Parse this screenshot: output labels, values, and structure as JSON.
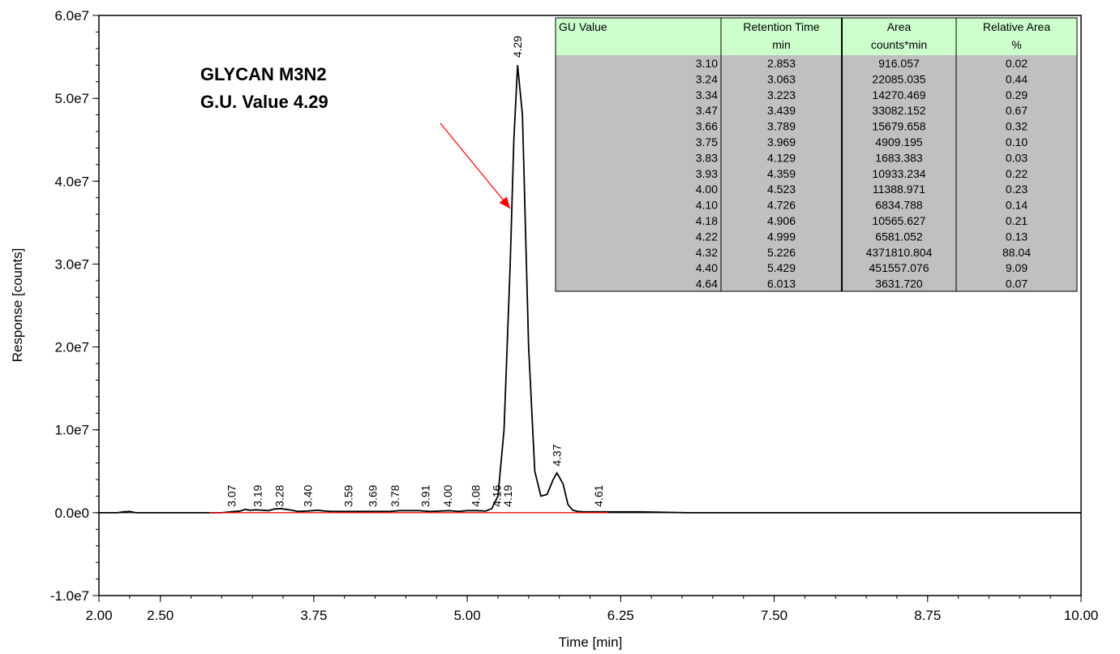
{
  "chart_data": {
    "type": "line",
    "xlabel": "Time [min]",
    "ylabel": "Response [counts]",
    "xlim": [
      2.0,
      10.0
    ],
    "ylim": [
      -10000000.0,
      60000000.0
    ],
    "x_ticks": [
      2.0,
      2.5,
      3.75,
      5.0,
      6.25,
      7.5,
      8.75,
      10.0
    ],
    "x_tick_labels": [
      "2.00",
      "2.50",
      "3.75",
      "5.00",
      "6.25",
      "7.50",
      "8.75",
      "10.00"
    ],
    "y_ticks": [
      -10000000.0,
      0,
      10000000.0,
      20000000.0,
      30000000.0,
      40000000.0,
      50000000.0,
      60000000.0
    ],
    "y_tick_labels": [
      "-1.0e7",
      "0.0e0",
      "1.0e7",
      "2.0e7",
      "3.0e7",
      "4.0e7",
      "5.0e7",
      "6.0e7"
    ],
    "grid": false,
    "series": [
      {
        "color": "#000000",
        "x": [
          2.0,
          2.15,
          2.2,
          2.25,
          2.3,
          2.6,
          2.9,
          3.0,
          3.07,
          3.15,
          3.19,
          3.23,
          3.28,
          3.33,
          3.38,
          3.43,
          3.48,
          3.55,
          3.62,
          3.7,
          3.78,
          3.84,
          3.9,
          3.96,
          4.02,
          4.1,
          4.2,
          4.3,
          4.37,
          4.45,
          4.52,
          4.6,
          4.7,
          4.78,
          4.85,
          4.93,
          5.0,
          5.08,
          5.15,
          5.2,
          5.25,
          5.3,
          5.35,
          5.38,
          5.41,
          5.45,
          5.5,
          5.55,
          5.6,
          5.65,
          5.7,
          5.73,
          5.78,
          5.82,
          5.86,
          5.9,
          5.95,
          6.0,
          6.05,
          6.1,
          6.2,
          6.4,
          6.8,
          7.2,
          10.0
        ],
        "y": [
          0,
          0,
          100000,
          150000,
          0,
          0,
          0,
          0,
          100000,
          200000,
          400000,
          300000,
          350000,
          300000,
          250000,
          450000,
          500000,
          350000,
          150000,
          200000,
          300000,
          200000,
          150000,
          150000,
          150000,
          150000,
          150000,
          150000,
          150000,
          250000,
          250000,
          250000,
          150000,
          200000,
          250000,
          150000,
          250000,
          250000,
          200000,
          500000,
          2000000,
          10000000,
          30000000,
          45000000,
          54000000,
          48000000,
          20000000,
          5000000,
          2000000,
          2200000,
          4000000,
          4800000,
          3500000,
          1000000,
          300000,
          150000,
          100000,
          100000,
          100000,
          100000,
          100000,
          100000,
          0,
          0,
          0
        ]
      },
      {
        "color": "#ff0000",
        "x": [
          2.9,
          6.15
        ],
        "y": [
          0,
          0
        ]
      }
    ],
    "peak_labels": [
      {
        "label": "3.07",
        "x": 3.08,
        "y": 300000
      },
      {
        "label": "3.19",
        "x": 3.29,
        "y": 300000
      },
      {
        "label": "3.28",
        "x": 3.47,
        "y": 300000
      },
      {
        "label": "3.40",
        "x": 3.7,
        "y": 300000
      },
      {
        "label": "3.59",
        "x": 4.03,
        "y": 300000
      },
      {
        "label": "3.69",
        "x": 4.23,
        "y": 300000
      },
      {
        "label": "3.78",
        "x": 4.41,
        "y": 300000
      },
      {
        "label": "3.91",
        "x": 4.66,
        "y": 300000
      },
      {
        "label": "4.00",
        "x": 4.84,
        "y": 300000
      },
      {
        "label": "4.08",
        "x": 5.07,
        "y": 300000
      },
      {
        "label": "4.16",
        "x": 5.24,
        "y": 300000
      },
      {
        "label": "4.19",
        "x": 5.33,
        "y": 300000
      },
      {
        "label": "4.29",
        "x": 5.41,
        "y": 54500000
      },
      {
        "label": "4.37",
        "x": 5.73,
        "y": 5200000
      },
      {
        "label": "4.61",
        "x": 6.07,
        "y": 300000
      }
    ],
    "annotation": {
      "lines": [
        "GLYCAN M3N2",
        "G.U. Value 4.29"
      ],
      "arrow_color": "#ff0000",
      "arrow_from": [
        4.78,
        47000000
      ],
      "arrow_to": [
        5.35,
        36700000
      ]
    }
  },
  "table": {
    "header_color": "#ccffcc",
    "body_color": "#c0c0c0",
    "columns": [
      {
        "line1": "GU Value",
        "line2": ""
      },
      {
        "line1": "Retention Time",
        "line2": "min"
      },
      {
        "line1": "Area",
        "line2": "counts*min"
      },
      {
        "line1": "Relative Area",
        "line2": "%"
      }
    ],
    "rows": [
      [
        "3.10",
        "2.853",
        "916.057",
        "0.02"
      ],
      [
        "3.24",
        "3.063",
        "22085.035",
        "0.44"
      ],
      [
        "3.34",
        "3.223",
        "14270.469",
        "0.29"
      ],
      [
        "3.47",
        "3.439",
        "33082.152",
        "0.67"
      ],
      [
        "3.66",
        "3.789",
        "15679.658",
        "0.32"
      ],
      [
        "3.75",
        "3.969",
        "4909.195",
        "0.10"
      ],
      [
        "3.83",
        "4.129",
        "1683.383",
        "0.03"
      ],
      [
        "3.93",
        "4.359",
        "10933.234",
        "0.22"
      ],
      [
        "4.00",
        "4.523",
        "11388.971",
        "0.23"
      ],
      [
        "4.10",
        "4.726",
        "6834.788",
        "0.14"
      ],
      [
        "4.18",
        "4.906",
        "10565.627",
        "0.21"
      ],
      [
        "4.22",
        "4.999",
        "6581.052",
        "0.13"
      ],
      [
        "4.32",
        "5.226",
        "4371810.804",
        "88.04"
      ],
      [
        "4.40",
        "5.429",
        "451557.076",
        "9.09"
      ],
      [
        "4.64",
        "6.013",
        "3631.720",
        "0.07"
      ]
    ]
  }
}
